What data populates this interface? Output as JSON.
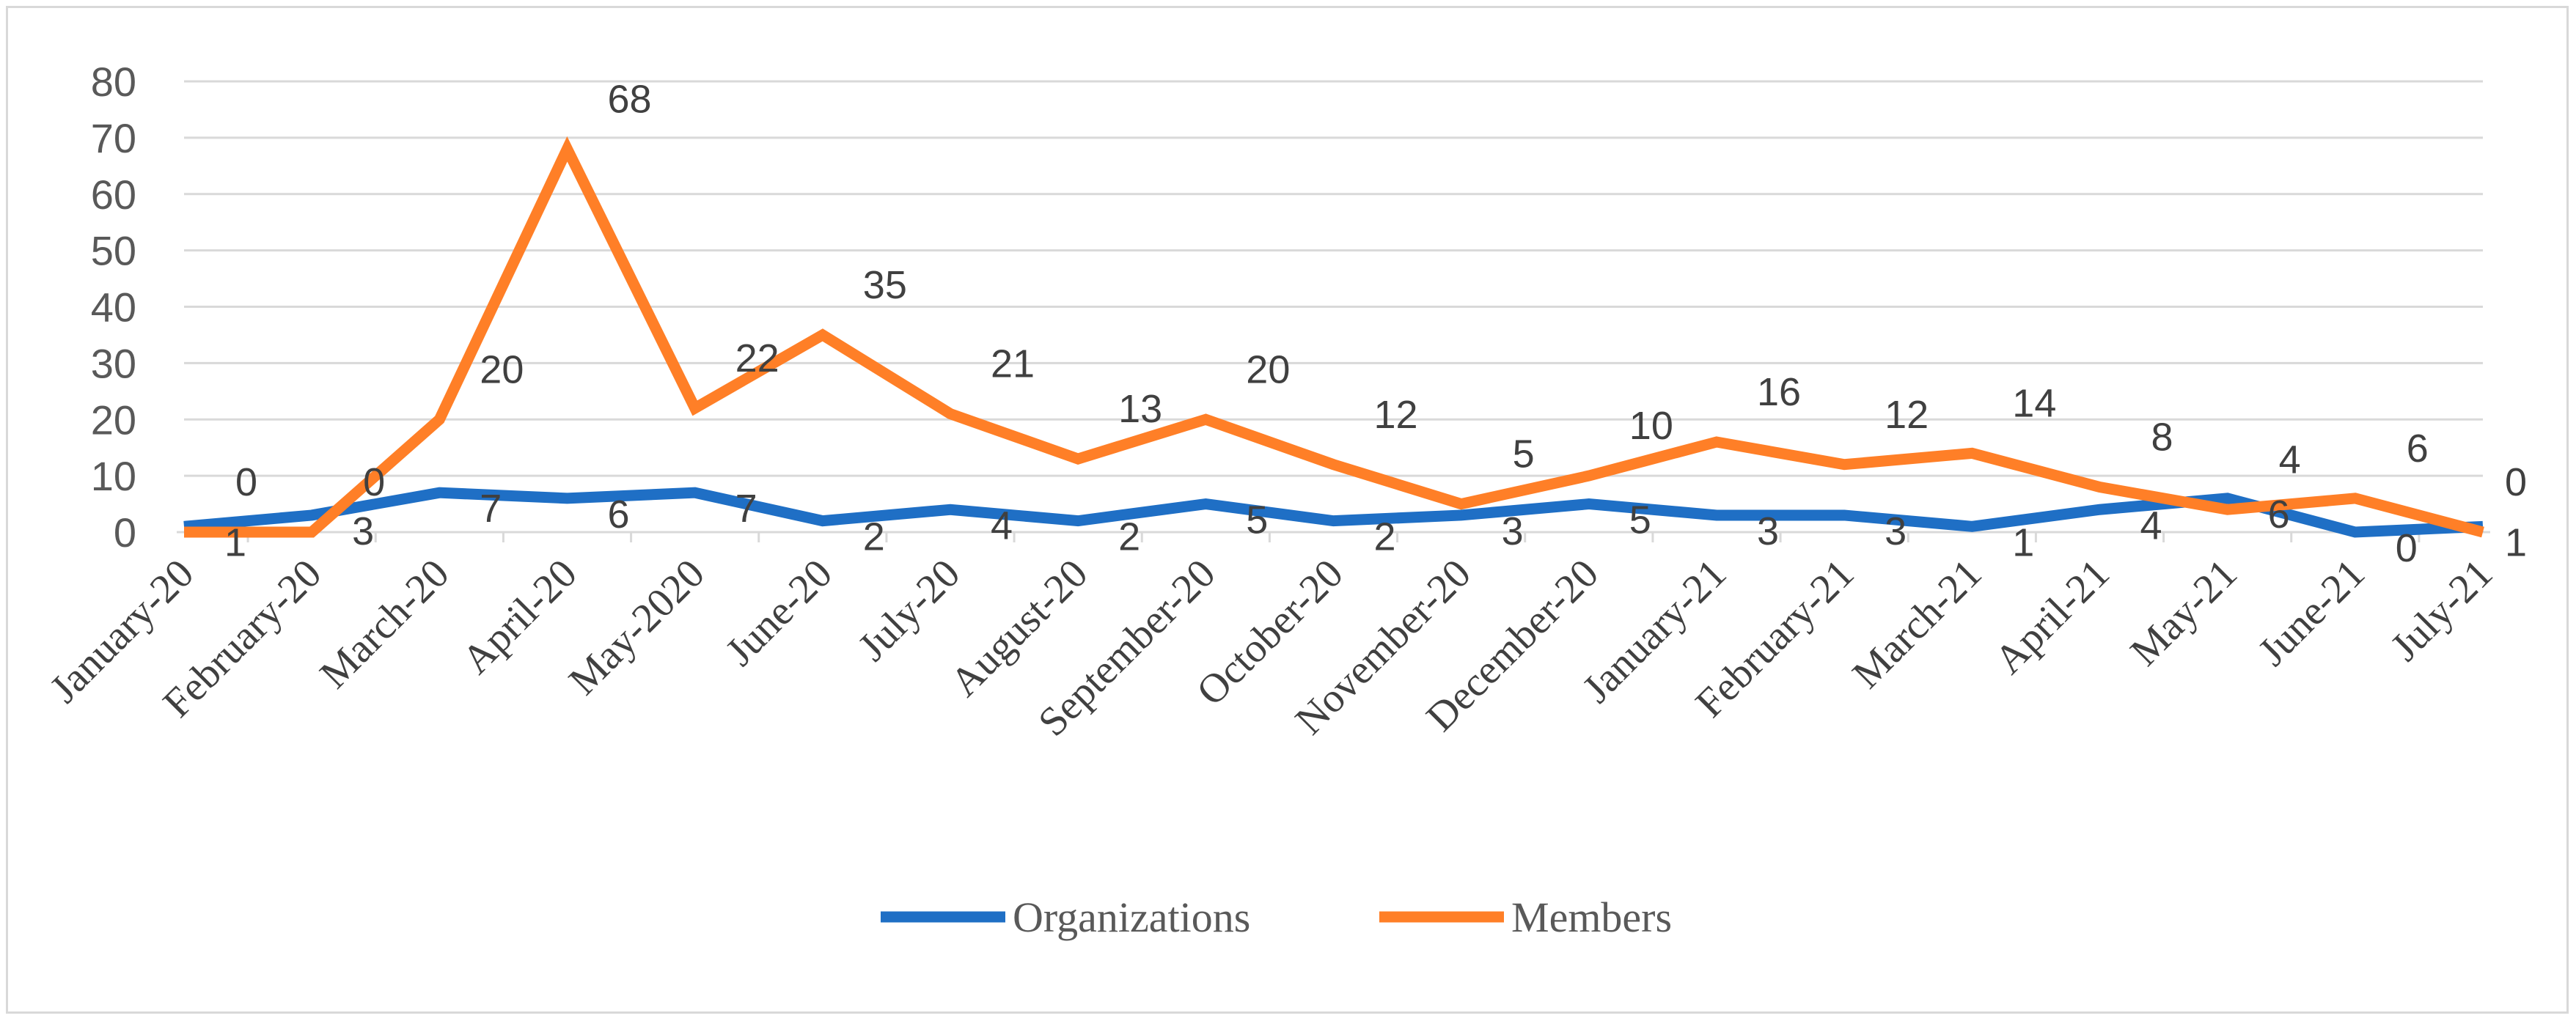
{
  "chart_data": {
    "type": "line",
    "title": "",
    "xlabel": "",
    "ylabel": "",
    "ylim": [
      0,
      80
    ],
    "yticks": [
      0,
      10,
      20,
      30,
      40,
      50,
      60,
      70,
      80
    ],
    "grid": true,
    "legend_position": "bottom",
    "categories": [
      "January-20",
      "February-20",
      "March-20",
      "April-20",
      "May-2020",
      "June-20",
      "July-20",
      "August-20",
      "September-20",
      "October-20",
      "November-20",
      "December-20",
      "January-21",
      "February-21",
      "March-21",
      "April-21",
      "May-21",
      "June-21",
      "July-21"
    ],
    "series": [
      {
        "name": "Organizations",
        "color": "#1f6fc5",
        "values": [
          1,
          3,
          7,
          6,
          7,
          2,
          4,
          2,
          5,
          2,
          3,
          5,
          3,
          3,
          1,
          4,
          6,
          0,
          1
        ]
      },
      {
        "name": "Members",
        "color": "#ff7f27",
        "values": [
          0,
          0,
          20,
          68,
          22,
          35,
          21,
          13,
          20,
          12,
          5,
          10,
          16,
          12,
          14,
          8,
          4,
          6,
          0
        ]
      }
    ]
  }
}
